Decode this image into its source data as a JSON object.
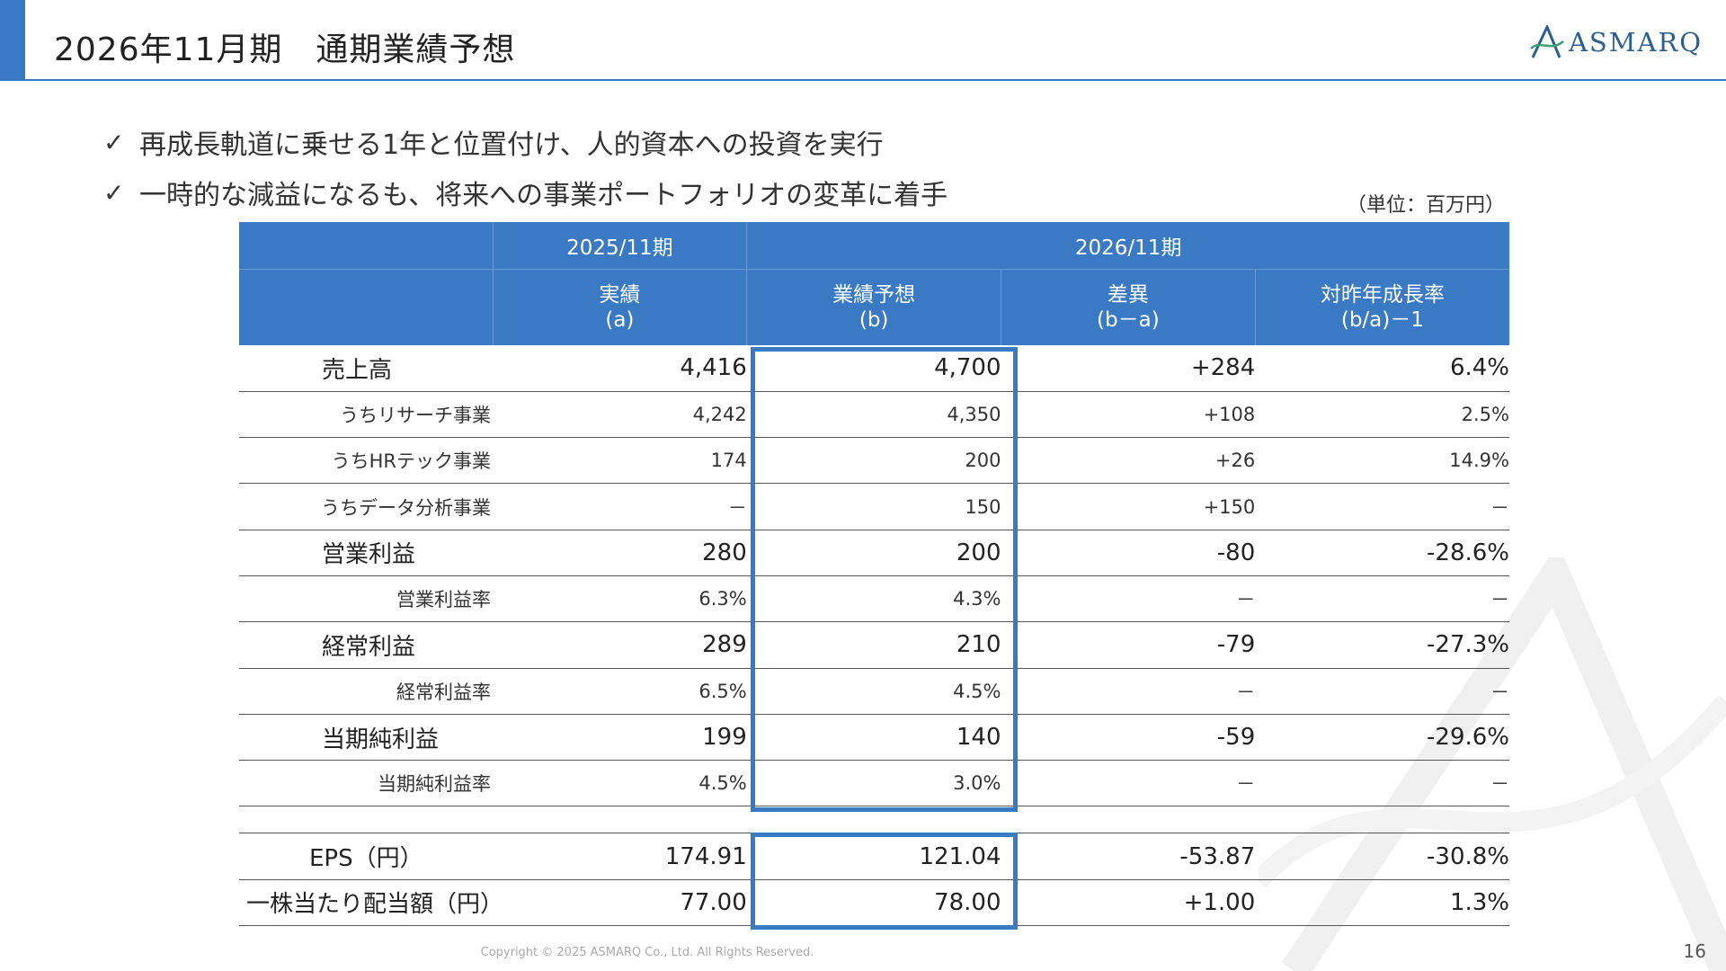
{
  "header": {
    "title": "2026年11月期　通期業績予想",
    "logo_text": "ASMARQ"
  },
  "bullets": [
    "再成長軌道に乗せる1年と位置付け、人的資本への投資を実行",
    "一時的な減益になるも、将来への事業ポートフォリオの変革に着手"
  ],
  "unit": "（単位：百万円）",
  "table": {
    "period_prev": "2025/11期",
    "period_next": "2026/11期",
    "columns": [
      {
        "l1": "実績",
        "l2": "(a)"
      },
      {
        "l1": "業績予想",
        "l2": "(b)"
      },
      {
        "l1": "差異",
        "l2": "(b－a)"
      },
      {
        "l1": "対昨年成長率",
        "l2": "(b/a)－1"
      }
    ],
    "rows": [
      {
        "label": "売上高",
        "a": "4,416",
        "b": "4,700",
        "diff": "+284",
        "rate": "6.4%"
      },
      {
        "label": "うちリサーチ事業",
        "a": "4,242",
        "b": "4,350",
        "diff": "+108",
        "rate": "2.5%"
      },
      {
        "label": "うちHRテック事業",
        "a": "174",
        "b": "200",
        "diff": "+26",
        "rate": "14.9%"
      },
      {
        "label": "うちデータ分析事業",
        "a": "－",
        "b": "150",
        "diff": "+150",
        "rate": "－"
      },
      {
        "label": "営業利益",
        "a": "280",
        "b": "200",
        "diff": "-80",
        "rate": "-28.6%"
      },
      {
        "label": "営業利益率",
        "a": "6.3%",
        "b": "4.3%",
        "diff": "－",
        "rate": "－"
      },
      {
        "label": "経常利益",
        "a": "289",
        "b": "210",
        "diff": "-79",
        "rate": "-27.3%"
      },
      {
        "label": "経常利益率",
        "a": "6.5%",
        "b": "4.5%",
        "diff": "－",
        "rate": "－"
      },
      {
        "label": "当期純利益",
        "a": "199",
        "b": "140",
        "diff": "-59",
        "rate": "-29.6%"
      },
      {
        "label": "当期純利益率",
        "a": "4.5%",
        "b": "3.0%",
        "diff": "－",
        "rate": "－"
      }
    ],
    "eps": {
      "label": "EPS（円）",
      "a": "174.91",
      "b": "121.04",
      "diff": "-53.87",
      "rate": "-30.8%"
    },
    "dividend": {
      "label": "一株当たり配当額（円）",
      "a": "77.00",
      "b": "78.00",
      "diff": "+1.00",
      "rate": "1.3%"
    }
  },
  "footer": {
    "copyright": "Copyright © 2025 ASMARQ Co., Ltd. All Rights Reserved.",
    "page_number": "16"
  },
  "colors": {
    "accent": "#3a79c4",
    "brand": "#2b5f8f"
  }
}
